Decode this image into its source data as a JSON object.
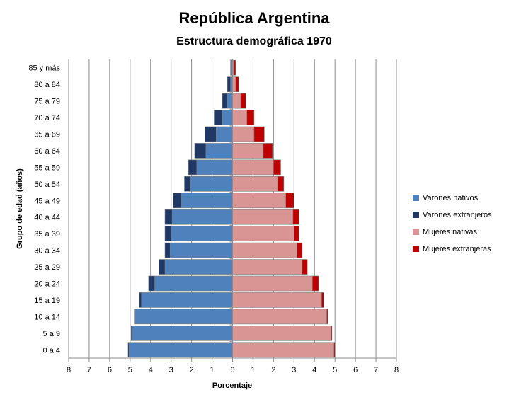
{
  "chart_data": {
    "type": "bar",
    "title": "República Argentina",
    "subtitle": "Estructura demográfica 1970",
    "xlabel": "Porcentaje",
    "ylabel": "Grupo de edad (años)",
    "x_ticks": [
      "8",
      "7",
      "6",
      "5",
      "4",
      "3",
      "2",
      "1",
      "0",
      "1",
      "2",
      "3",
      "4",
      "5",
      "6",
      "7",
      "8"
    ],
    "xlim": [
      -8,
      8
    ],
    "grid": true,
    "legend_position": "right",
    "categories": [
      "0 a 4",
      "5 a 9",
      "10 a 14",
      "15 a 19",
      "20 a 24",
      "25 a 29",
      "30 a 34",
      "35 a 39",
      "40 a 44",
      "45 a 49",
      "50 a 54",
      "55 a 59",
      "60 a 64",
      "65 a 69",
      "70 a 74",
      "75 a 79",
      "80 a 84",
      "85 y más"
    ],
    "series": [
      {
        "name": "Varones nativos",
        "color": "#4F81BD",
        "side": "left",
        "values": [
          5.05,
          4.9,
          4.75,
          4.45,
          3.8,
          3.3,
          3.05,
          3.0,
          2.95,
          2.5,
          2.05,
          1.75,
          1.3,
          0.8,
          0.5,
          0.25,
          0.1,
          0.05
        ]
      },
      {
        "name": "Varones extranjeros",
        "color": "#1F3864",
        "side": "left",
        "values": [
          0.05,
          0.05,
          0.05,
          0.1,
          0.3,
          0.3,
          0.25,
          0.3,
          0.35,
          0.4,
          0.3,
          0.4,
          0.55,
          0.55,
          0.4,
          0.25,
          0.15,
          0.05
        ]
      },
      {
        "name": "Mujeres nativas",
        "color": "#D99594",
        "side": "right",
        "values": [
          4.95,
          4.8,
          4.6,
          4.35,
          3.9,
          3.4,
          3.15,
          3.0,
          2.95,
          2.6,
          2.2,
          2.0,
          1.5,
          1.05,
          0.7,
          0.4,
          0.15,
          0.05
        ]
      },
      {
        "name": "Mujeres extranjeras",
        "color": "#C00000",
        "side": "right",
        "values": [
          0.05,
          0.05,
          0.05,
          0.1,
          0.3,
          0.25,
          0.25,
          0.25,
          0.3,
          0.4,
          0.3,
          0.35,
          0.45,
          0.5,
          0.35,
          0.25,
          0.15,
          0.1
        ]
      }
    ]
  }
}
